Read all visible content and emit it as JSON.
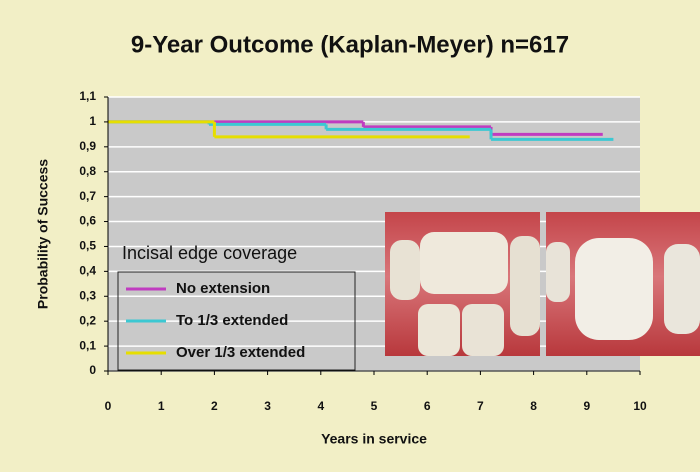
{
  "chart_data": {
    "type": "line",
    "step": "post",
    "title": "9-Year Outcome (Kaplan-Meyer)  n=617",
    "x_label": "Years in service",
    "y_label": "Probability of Success",
    "xlim": [
      0,
      10
    ],
    "xticks": [
      0,
      1,
      2,
      3,
      4,
      5,
      6,
      7,
      8,
      9,
      10
    ],
    "ylim": [
      0,
      1.1
    ],
    "yticks": [
      0,
      {
        "value": 0.1,
        "label": "0,1"
      },
      {
        "value": 0.2,
        "label": "0,2"
      },
      {
        "value": 0.3,
        "label": "0,3"
      },
      {
        "value": 0.4,
        "label": "0,4"
      },
      {
        "value": 0.5,
        "label": "0,5"
      },
      {
        "value": 0.6,
        "label": "0,6"
      },
      {
        "value": 0.7,
        "label": "0,7"
      },
      {
        "value": 0.8,
        "label": "0,8"
      },
      {
        "value": 0.9,
        "label": "0,9"
      },
      1,
      {
        "value": 1.1,
        "label": "1,1"
      }
    ],
    "grid": true,
    "legend_title": "Incisal edge coverage",
    "legend_position": "lower-left",
    "series": [
      {
        "name": "No extension",
        "color": "#c03cc0",
        "x": [
          0,
          4.8,
          7.2,
          9.3
        ],
        "values": [
          1,
          0.98,
          0.95,
          0.95
        ]
      },
      {
        "name": "To 1/3 extended",
        "color": "#3cc8d2",
        "x": [
          0,
          1.9,
          4.1,
          7.2,
          9.5
        ],
        "values": [
          1,
          0.99,
          0.97,
          0.93,
          0.93
        ]
      },
      {
        "name": "Over 1/3 extended",
        "color": "#e6de00",
        "x": [
          0,
          2,
          6.8
        ],
        "values": [
          1,
          0.94,
          0.94
        ]
      }
    ]
  }
}
